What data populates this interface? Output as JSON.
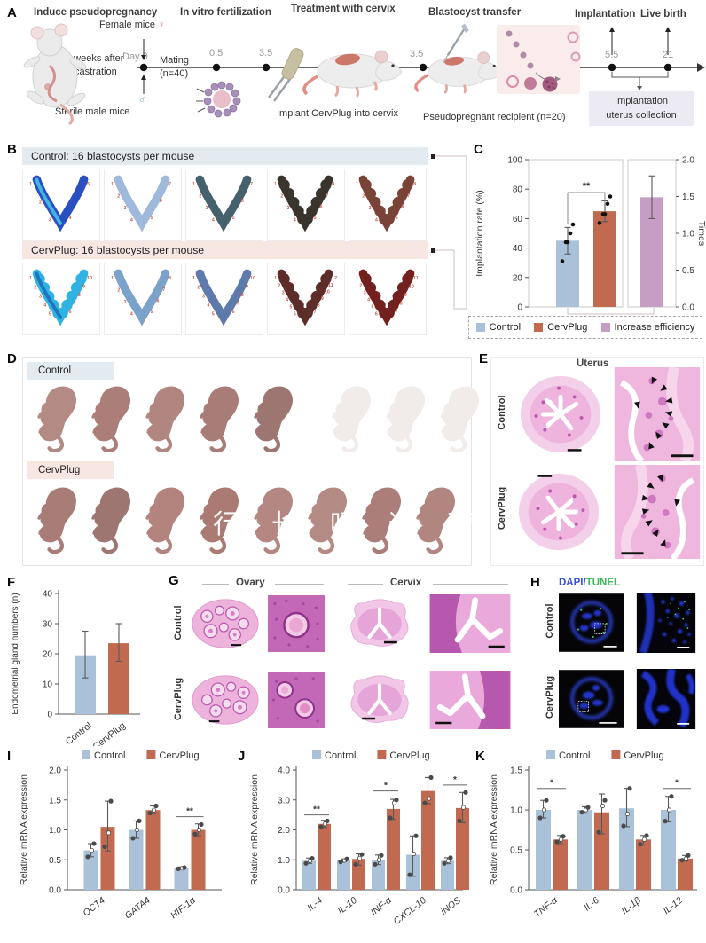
{
  "colors": {
    "control": "#a9c2d9",
    "cervplug": "#c16a50",
    "increase": "#c79ec3",
    "control_bg": "#e3ebf1",
    "cervplug_bg": "#f8e6e3",
    "collection_bg": "#ecebf3",
    "dapi": "#3b4fd6",
    "tunel": "#3cb45c",
    "site_number": "#c65b4e"
  },
  "panelA": {
    "label": "A",
    "stages": [
      "Induce pseudopregnancy",
      "In vitro fertilization",
      "Treatment with cervix",
      "Blastocyst transfer",
      "Implantation",
      "Live birth"
    ],
    "female_mice": "Female mice",
    "female_symbol": "♀",
    "male_symbol": "♂",
    "castration_l1": "2 weeks after",
    "castration_l2": "castration",
    "sterile_male": "Sterile male mice",
    "day0": "Day 0",
    "mating_l1": "Mating",
    "mating_l2": "(n=40)",
    "timepoints": [
      "0.5",
      "3.5",
      "3.5",
      "5.5",
      "21"
    ],
    "implant_caption": "Implant CervPlug into cervix",
    "recipient_caption": "Pseudopregnant recipient (n=20)",
    "collection_l1": "Implantation",
    "collection_l2": "uterus collection"
  },
  "panelB": {
    "label": "B",
    "control_title": "Control: 16 blastocysts per mouse",
    "cervplug_title": "CervPlug: 16 blastocysts per mouse",
    "control_mice": [
      {
        "color": "#2a4fc0",
        "color2": "#49c8ea",
        "sites": 5
      },
      {
        "color": "#9fb9dc",
        "sites": 7
      },
      {
        "color": "#44616d",
        "sites": 7
      },
      {
        "color": "#3a352c",
        "sites": 8,
        "bulges": true
      },
      {
        "color": "#7a4337",
        "sites": 8,
        "bulges": true
      }
    ],
    "cervplug_mice": [
      {
        "color": "#2fb3e2",
        "color2": "#1d69b8",
        "sites": 10,
        "bulges": true
      },
      {
        "color": "#7aa2cb",
        "sites": 8
      },
      {
        "color": "#5d7aab",
        "sites": 10
      },
      {
        "color": "#5d2d29",
        "sites": 12,
        "bulges": true
      },
      {
        "color": "#72211e",
        "sites": 11,
        "bulges": true
      }
    ]
  },
  "panelC": {
    "label": "C",
    "chart_data": {
      "type": "bar",
      "ylabel_left": "Implantation rate (%)",
      "ylabel_right": "Times",
      "ylim_left": [
        0,
        100
      ],
      "ylim_right": [
        0,
        2
      ],
      "yticks_left": [
        "0",
        "20",
        "40",
        "60",
        "80",
        "100"
      ],
      "yticks_right": [
        "0.0",
        "0.5",
        "1.0",
        "1.5",
        "2.0"
      ],
      "series": [
        {
          "name": "Control",
          "value": 45,
          "err": [
            36,
            54
          ],
          "points": [
            31,
            44,
            44,
            50,
            56
          ],
          "axis": "left"
        },
        {
          "name": "CervPlug",
          "value": 65,
          "err": [
            58,
            72
          ],
          "points": [
            57,
            63,
            63,
            70,
            75
          ],
          "axis": "left"
        },
        {
          "name": "Increase efficiency",
          "value": 1.49,
          "err": [
            1.2,
            1.78
          ],
          "points": [],
          "axis": "right"
        }
      ],
      "sig": "**"
    },
    "legend": [
      "Control",
      "CervPlug",
      "Increase efficiency"
    ]
  },
  "panelD": {
    "label": "D",
    "control_chip": "Control",
    "cervplug_chip": "CervPlug",
    "control_pups": {
      "live": 5,
      "faded": 3
    },
    "cervplug_pups": {
      "live": 8,
      "faded": 0
    },
    "live_palette": [
      "#b48a84",
      "#ab7e79",
      "#b18580",
      "#a97d77",
      "#9d7672",
      "#b3837d",
      "#aa7a73",
      "#b58782"
    ],
    "faded_color": "#f1ecea",
    "watermark": [
      "行",
      "长",
      "吗",
      "这",
      "营"
    ]
  },
  "panelE": {
    "label": "E",
    "title": "Uterus",
    "rows": [
      "Control",
      "CervPlug"
    ]
  },
  "panelF": {
    "label": "F",
    "chart_data": {
      "type": "bar",
      "ylabel": "Endometrial gland numbers (n)",
      "ymax": 40,
      "yticks": [
        "0",
        "10",
        "20",
        "30",
        "40"
      ],
      "categories": [
        "Control",
        "CervPlug"
      ],
      "values": [
        19.5,
        23.5
      ],
      "err": [
        [
          12,
          27.5
        ],
        [
          17.5,
          30
        ]
      ]
    }
  },
  "panelG": {
    "label": "G",
    "titles": [
      "Ovary",
      "Cervix"
    ],
    "rows": [
      "Control",
      "CervPlug"
    ]
  },
  "panelH": {
    "label": "H",
    "title_dapi": "DAPI",
    "title_slash": "/",
    "title_tunel": "TUNEL",
    "rows": [
      "Control",
      "CervPlug"
    ]
  },
  "panelI": {
    "label": "I",
    "chart_data": {
      "type": "grouped-bar",
      "ylabel": "Relative mRNA expression",
      "ymax": 2.0,
      "yticks": [
        "0.0",
        "0.5",
        "1.0",
        "1.5",
        "2.0"
      ],
      "categories": [
        "OCT4",
        "GATA4",
        "HIF-1α"
      ],
      "series": [
        {
          "name": "Control",
          "values": [
            0.66,
            1.0,
            0.36
          ],
          "err": [
            [
              0.55,
              0.77
            ],
            [
              0.86,
              1.15
            ],
            [
              0.34,
              0.38
            ]
          ],
          "points": [
            [
              0.55,
              0.66,
              0.77
            ],
            [
              0.86,
              1.0,
              1.15
            ],
            [
              0.35,
              0.36,
              0.37
            ]
          ]
        },
        {
          "name": "CervPlug",
          "values": [
            1.05,
            1.33,
            1.0
          ],
          "err": [
            [
              0.65,
              1.48
            ],
            [
              1.27,
              1.4
            ],
            [
              0.9,
              1.1
            ]
          ],
          "points": [
            [
              0.72,
              0.95,
              1.48
            ],
            [
              1.28,
              1.33,
              1.4
            ],
            [
              0.93,
              1.0,
              1.09
            ]
          ]
        }
      ],
      "sig": [
        {
          "cat": "HIF-1α",
          "label": "**",
          "y": 1.22
        }
      ]
    }
  },
  "panelJ": {
    "label": "J",
    "chart_data": {
      "type": "grouped-bar",
      "ylabel": "Relative mRNA expression",
      "ymax": 4.0,
      "yticks": [
        "0.0",
        "1.0",
        "2.0",
        "3.0",
        "4.0"
      ],
      "categories": [
        "IL-4",
        "IL-10",
        "INF-α",
        "CXCL-10",
        "iNOS"
      ],
      "series": [
        {
          "name": "Control",
          "values": [
            0.97,
            0.98,
            1.0,
            1.17,
            0.97
          ],
          "err": [
            [
              0.88,
              1.06
            ],
            [
              0.93,
              1.03
            ],
            [
              0.84,
              1.16
            ],
            [
              0.45,
              1.8
            ],
            [
              0.87,
              1.07
            ]
          ],
          "points": [
            [
              0.88,
              0.97,
              1.05
            ],
            [
              0.93,
              0.98,
              1.03
            ],
            [
              0.85,
              1.0,
              1.15
            ],
            [
              0.5,
              1.2,
              1.8
            ],
            [
              0.88,
              0.97,
              1.07
            ]
          ]
        },
        {
          "name": "CervPlug",
          "values": [
            2.2,
            1.03,
            2.7,
            3.3,
            2.73
          ],
          "err": [
            [
              2.08,
              2.32
            ],
            [
              0.82,
              1.2
            ],
            [
              2.35,
              3.02
            ],
            [
              2.88,
              3.75
            ],
            [
              2.24,
              3.25
            ]
          ],
          "points": [
            [
              2.1,
              2.2,
              2.3
            ],
            [
              0.85,
              1.05,
              1.18
            ],
            [
              2.4,
              2.9,
              3.0
            ],
            [
              2.9,
              3.05,
              3.75
            ],
            [
              2.3,
              2.75,
              3.25
            ]
          ]
        }
      ],
      "sig": [
        {
          "cat": "IL-4",
          "label": "**",
          "y": 2.5
        },
        {
          "cat": "INF-α",
          "label": "*",
          "y": 3.3
        },
        {
          "cat": "iNOS",
          "label": "*",
          "y": 3.5
        }
      ]
    }
  },
  "panelK": {
    "label": "K",
    "chart_data": {
      "type": "grouped-bar",
      "ylabel": "Relative mRNA expression",
      "ymax": 1.5,
      "yticks": [
        "0.0",
        "0.5",
        "1.0",
        "1.5"
      ],
      "categories": [
        "TNF-α",
        "IL-6",
        "IL-1β",
        "IL-12"
      ],
      "series": [
        {
          "name": "Control",
          "values": [
            1.0,
            1.0,
            1.02,
            1.0
          ],
          "err": [
            [
              0.9,
              1.12
            ],
            [
              0.96,
              1.04
            ],
            [
              0.79,
              1.27
            ],
            [
              0.85,
              1.17
            ]
          ],
          "points": [
            [
              0.9,
              1.0,
              1.12
            ],
            [
              0.97,
              1.0,
              1.03
            ],
            [
              0.8,
              0.95,
              1.27
            ],
            [
              0.86,
              1.0,
              1.17
            ]
          ]
        },
        {
          "name": "CervPlug",
          "values": [
            0.63,
            0.97,
            0.63,
            0.39
          ],
          "err": [
            [
              0.58,
              0.68
            ],
            [
              0.7,
              1.2
            ],
            [
              0.56,
              0.68
            ],
            [
              0.36,
              0.43
            ]
          ],
          "points": [
            [
              0.6,
              0.63,
              0.67
            ],
            [
              0.72,
              1.05,
              1.12
            ],
            [
              0.57,
              0.63,
              0.68
            ],
            [
              0.37,
              0.39,
              0.43
            ]
          ]
        }
      ],
      "sig": [
        {
          "cat": "TNF-α",
          "label": "*",
          "y": 1.27
        },
        {
          "cat": "IL-12",
          "label": "*",
          "y": 1.27
        }
      ]
    }
  }
}
